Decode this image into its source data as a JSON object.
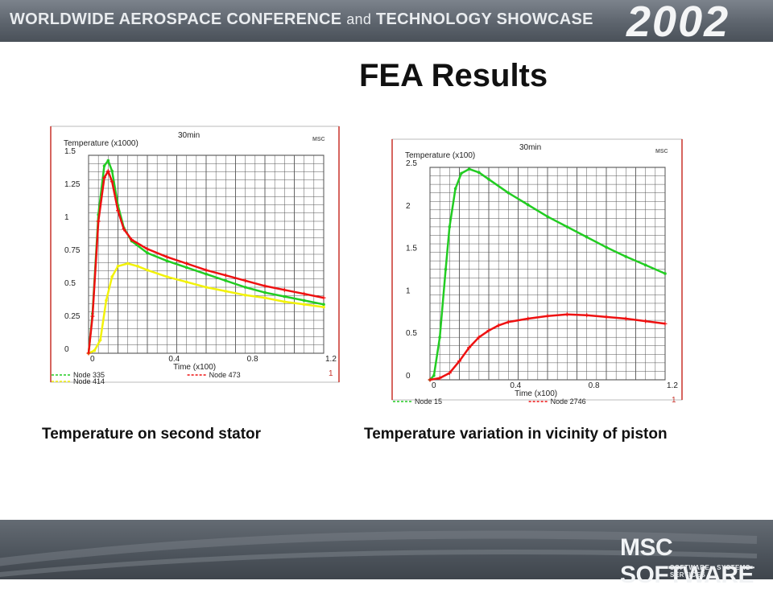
{
  "header": {
    "conference_title": "WORLDWIDE AEROSPACE CONFERENCE",
    "conference_and": "and",
    "conference_suffix": "TECHNOLOGY SHOWCASE",
    "year": "2002"
  },
  "slide": {
    "title": "FEA Results",
    "caption_left": "Temperature on second stator",
    "caption_right": "Temperature variation in vicinity of piston"
  },
  "footer": {
    "logo_text": "MSC SOFTWARE",
    "logo_tagline": "SOFTWARE • SYSTEMS • SERVICES"
  },
  "colors": {
    "green": "#22cc22",
    "red": "#ee1111",
    "yellow": "#f2f20a",
    "grid": "#555555",
    "plot_border": "#c8322a"
  },
  "chart_data": [
    {
      "type": "line",
      "title": "30min",
      "ylabel": "Temperature (x1000)",
      "xlabel": "Time (x100)",
      "corner_label": "1",
      "ylim": [
        0,
        1.5
      ],
      "xlim": [
        0,
        1.2
      ],
      "yticks": [
        "0",
        "0.25",
        "0.5",
        "0.75",
        "1",
        "1.25",
        "1.5"
      ],
      "xticks": [
        "0",
        "0.4",
        "0.8",
        "1.2"
      ],
      "grid": true,
      "legend_position": "bottom",
      "series": [
        {
          "name": "Node 335",
          "color": "green",
          "marker": "dot",
          "x": [
            0,
            0.02,
            0.05,
            0.08,
            0.1,
            0.12,
            0.15,
            0.18,
            0.22,
            0.3,
            0.4,
            0.5,
            0.6,
            0.7,
            0.8,
            0.9,
            1.0,
            1.1,
            1.2
          ],
          "y": [
            0,
            0.3,
            1.05,
            1.42,
            1.46,
            1.38,
            1.12,
            0.95,
            0.85,
            0.76,
            0.7,
            0.65,
            0.6,
            0.55,
            0.5,
            0.46,
            0.43,
            0.4,
            0.37
          ]
        },
        {
          "name": "Node 414",
          "color": "yellow",
          "marker": "dot",
          "x": [
            0,
            0.03,
            0.06,
            0.09,
            0.12,
            0.15,
            0.2,
            0.25,
            0.3,
            0.4,
            0.5,
            0.6,
            0.7,
            0.8,
            0.9,
            1.0,
            1.1,
            1.2
          ],
          "y": [
            0,
            0.02,
            0.1,
            0.4,
            0.58,
            0.66,
            0.68,
            0.66,
            0.63,
            0.58,
            0.54,
            0.5,
            0.47,
            0.44,
            0.42,
            0.39,
            0.37,
            0.35
          ]
        },
        {
          "name": "Node 473",
          "color": "red",
          "marker": "plus",
          "x": [
            0,
            0.02,
            0.05,
            0.08,
            0.1,
            0.12,
            0.15,
            0.18,
            0.22,
            0.3,
            0.4,
            0.5,
            0.6,
            0.7,
            0.8,
            0.9,
            1.0,
            1.1,
            1.2
          ],
          "y": [
            0,
            0.28,
            1.0,
            1.33,
            1.38,
            1.3,
            1.08,
            0.94,
            0.86,
            0.79,
            0.73,
            0.68,
            0.63,
            0.59,
            0.55,
            0.51,
            0.48,
            0.45,
            0.42
          ]
        }
      ]
    },
    {
      "type": "line",
      "title": "30min",
      "ylabel": "Temperature (x100)",
      "xlabel": "Time (x100)",
      "corner_label": "1",
      "ylim": [
        0,
        2.5
      ],
      "xlim": [
        0,
        1.2
      ],
      "yticks": [
        "0",
        "0.5",
        "1",
        "1.5",
        "2",
        "2.5"
      ],
      "xticks": [
        "0",
        "0.4",
        "0.8",
        "1.2"
      ],
      "grid": true,
      "legend_position": "bottom",
      "series": [
        {
          "name": "Node 15",
          "color": "green",
          "marker": "dot",
          "x": [
            0,
            0.02,
            0.05,
            0.08,
            0.1,
            0.13,
            0.16,
            0.2,
            0.25,
            0.3,
            0.4,
            0.5,
            0.6,
            0.7,
            0.8,
            0.9,
            1.0,
            1.1,
            1.2
          ],
          "y": [
            0,
            0.05,
            0.5,
            1.3,
            1.8,
            2.25,
            2.43,
            2.48,
            2.44,
            2.36,
            2.2,
            2.06,
            1.92,
            1.8,
            1.68,
            1.56,
            1.45,
            1.35,
            1.25
          ]
        },
        {
          "name": "Node 2746",
          "color": "red",
          "marker": "plus",
          "x": [
            0,
            0.05,
            0.1,
            0.15,
            0.2,
            0.25,
            0.3,
            0.35,
            0.4,
            0.5,
            0.6,
            0.7,
            0.8,
            0.9,
            1.0,
            1.1,
            1.2
          ],
          "y": [
            0,
            0.02,
            0.08,
            0.22,
            0.38,
            0.5,
            0.58,
            0.64,
            0.68,
            0.72,
            0.75,
            0.77,
            0.76,
            0.74,
            0.72,
            0.69,
            0.66
          ]
        }
      ]
    }
  ]
}
